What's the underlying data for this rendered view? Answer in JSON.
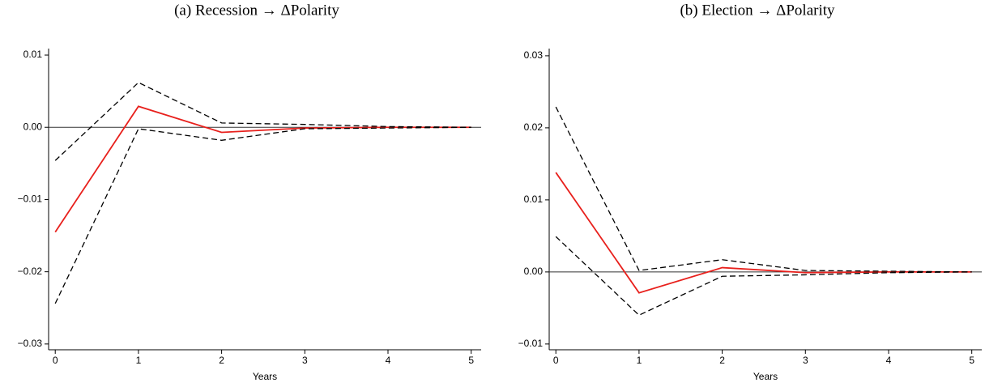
{
  "chart_data": [
    {
      "type": "line",
      "title": "(a) Recession → ΔPolarity",
      "xlabel": "Years",
      "x": [
        0,
        1,
        2,
        3,
        4,
        5
      ],
      "xlim": [
        -0.08,
        5.12
      ],
      "xticks": [
        0,
        1,
        2,
        3,
        4,
        5
      ],
      "ylim": [
        -0.0308,
        0.0109
      ],
      "yticks": [
        0.01,
        {
          "value": 0,
          "label": "0.00"
        },
        {
          "value": -0.01,
          "label": "−0.01"
        },
        {
          "value": -0.02,
          "label": "−0.02"
        },
        {
          "value": -0.03,
          "label": "−0.03"
        }
      ],
      "refline": 0,
      "series": [
        {
          "color": "#e8201c",
          "dash": "solid",
          "values": [
            -0.0145,
            0.0029,
            -0.0007,
            -0.0001,
            0,
            0
          ]
        },
        {
          "color": "#000000",
          "dash": "dashed",
          "values": [
            -0.0046,
            0.0062,
            0.0006,
            0.0004,
            0.0001,
            0
          ]
        },
        {
          "color": "#000000",
          "dash": "dashed",
          "values": [
            -0.0244,
            -0.0002,
            -0.0018,
            -0.0002,
            -0.0001,
            0
          ]
        }
      ]
    },
    {
      "type": "line",
      "title": "(b) Election → ΔPolarity",
      "xlabel": "Years",
      "x": [
        0,
        1,
        2,
        3,
        4,
        5
      ],
      "xlim": [
        -0.08,
        5.12
      ],
      "xticks": [
        0,
        1,
        2,
        3,
        4,
        5
      ],
      "ylim": [
        -0.0108,
        0.031
      ],
      "yticks": [
        0.03,
        0.02,
        0.01,
        {
          "value": 0,
          "label": "0.00"
        },
        {
          "value": -0.01,
          "label": "−0.01"
        }
      ],
      "refline": 0,
      "series": [
        {
          "color": "#e8201c",
          "dash": "solid",
          "values": [
            0.0138,
            -0.0029,
            0.0006,
            -0.0001,
            0,
            0
          ]
        },
        {
          "color": "#000000",
          "dash": "dashed",
          "values": [
            0.0229,
            0.0002,
            0.0017,
            0.0002,
            0.0001,
            0
          ]
        },
        {
          "color": "#000000",
          "dash": "dashed",
          "values": [
            0.0049,
            -0.006,
            -0.0006,
            -0.0004,
            -0.0001,
            0
          ]
        }
      ]
    }
  ]
}
